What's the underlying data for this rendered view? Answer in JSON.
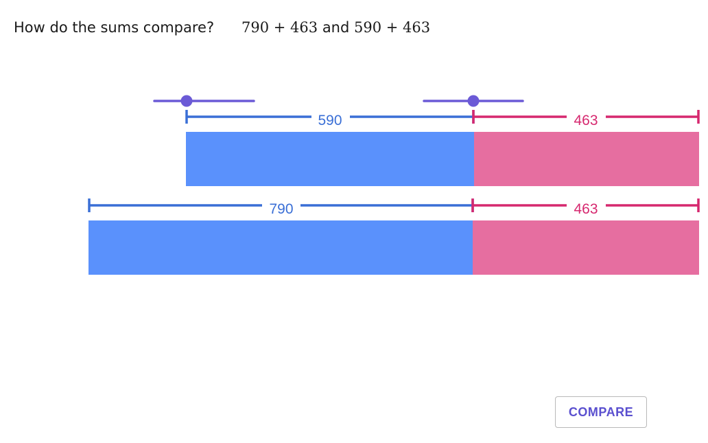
{
  "prompt": {
    "question": "How do the sums compare?",
    "expr_a": "790 + 463",
    "expr_join": "and",
    "expr_b": "590 + 463"
  },
  "bars": {
    "top": {
      "left_label": "590",
      "right_label": "463",
      "left_value": 590,
      "right_value": 463
    },
    "bottom": {
      "left_label": "790",
      "right_label": "463",
      "left_value": 790,
      "right_value": 463
    }
  },
  "sliders": {
    "left": {
      "icon": "slider-handle-icon"
    },
    "right": {
      "icon": "slider-handle-icon"
    }
  },
  "colors": {
    "blue_bar": "#5a91fc",
    "blue_line": "#3a6fd6",
    "pink_bar": "#e66ea0",
    "pink_line": "#d6286f",
    "slider": "#6b5ad6"
  },
  "button": {
    "compare_label": "COMPARE"
  }
}
